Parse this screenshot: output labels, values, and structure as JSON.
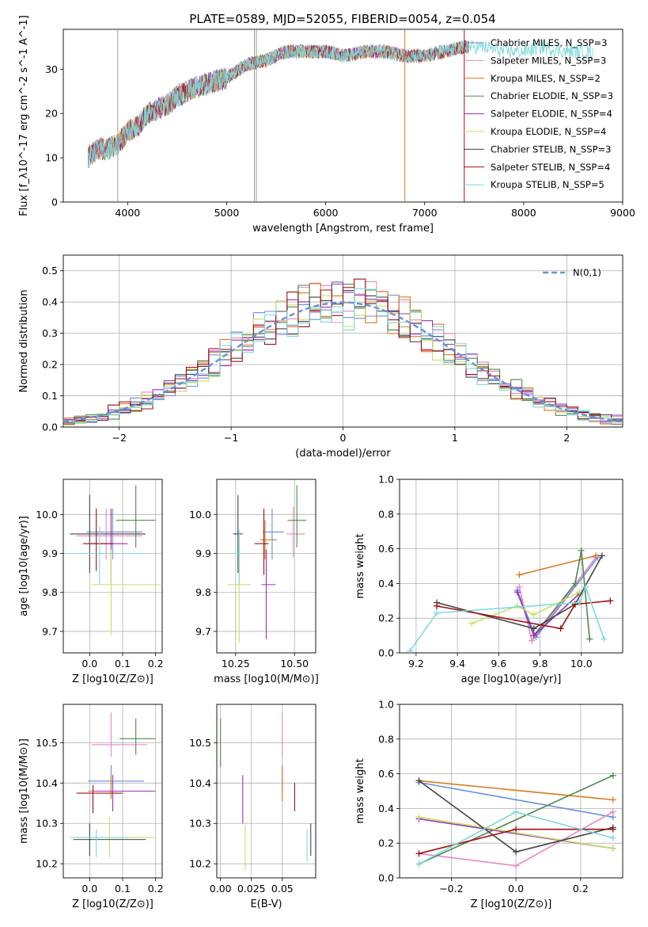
{
  "figure_title": "PLATE=0589, MJD=52055, FIBERID=0054, z=0.054",
  "series_names": [
    "Chabrier MILES, N_SSP=3",
    "Salpeter MILES, N_SSP=3",
    "Kroupa MILES, N_SSP=2",
    "Chabrier ELODIE, N_SSP=3",
    "Salpeter ELODIE, N_SSP=4",
    "Kroupa ELODIE, N_SSP=4",
    "Chabrier STELIB, N_SSP=3",
    "Salpeter STELIB, N_SSP=4",
    "Kroupa STELIB, N_SSP=5"
  ],
  "series_colors": [
    "#6a8fdd",
    "#e888c0",
    "#d97a20",
    "#4f8a4f",
    "#9a30b8",
    "#c8e060",
    "#454545",
    "#a01010",
    "#80d8dc"
  ],
  "chart_data": [
    {
      "type": "line",
      "panel": "spectrum",
      "xlabel": "wavelength [Angstrom, rest frame]",
      "ylabel": "Flux [f_λ10^-17 erg cm^-2 s^-1 A^-1]",
      "xlim": [
        3350,
        9000
      ],
      "ylim": [
        0,
        39
      ],
      "xticks": [
        4000,
        5000,
        6000,
        7000,
        8000,
        9000
      ],
      "yticks": [
        0,
        10,
        20,
        30
      ],
      "grid": false,
      "legend": "top-right",
      "spectrum_envelope": {
        "x": [
          3600,
          3700,
          3800,
          3900,
          4000,
          4100,
          4200,
          4300,
          4400,
          4500,
          4700,
          5000,
          5200,
          5400,
          5600,
          5800,
          6000,
          6200,
          6400,
          6600,
          6800,
          7000,
          7200,
          7400,
          7600,
          7800,
          8000,
          8200,
          8400,
          8700
        ],
        "y": [
          10,
          12,
          12,
          13,
          16,
          17,
          20,
          21,
          22,
          24,
          26,
          28,
          31,
          32,
          34,
          34,
          34,
          33,
          34,
          34,
          33,
          33,
          34,
          35,
          35,
          34,
          34,
          35,
          34,
          34
        ]
      },
      "spikes_x": [
        3900,
        5280,
        5300,
        6800,
        7400
      ]
    },
    {
      "type": "bar",
      "panel": "residual-histogram",
      "xlabel": "(data-model)/error",
      "ylabel": "Normed distribution",
      "xlim": [
        -2.5,
        2.5
      ],
      "ylim": [
        0,
        0.55
      ],
      "xticks": [
        -2,
        -1,
        0,
        1,
        2
      ],
      "yticks": [
        0.0,
        0.1,
        0.2,
        0.3,
        0.4,
        0.5
      ],
      "grid": true,
      "legend": "top-right",
      "reference_curve": "N(0,1)"
    },
    {
      "type": "scatter",
      "panel": "Z-vs-age",
      "xlabel": "Z [log10(Z/Z⊙)]",
      "ylabel": "age [log10(age/yr)]",
      "xlim": [
        -0.08,
        0.22
      ],
      "ylim": [
        9.645,
        10.09
      ],
      "xticks": [
        0.0,
        0.1,
        0.2
      ],
      "yticks": [
        9.7,
        9.8,
        9.9,
        10.0
      ],
      "grid": true,
      "points": [
        {
          "x": 0.07,
          "y": 9.955,
          "xerr": [
            0.08,
            0.09
          ],
          "yerr": [
            0.07,
            0.06
          ]
        },
        {
          "x": 0.05,
          "y": 9.945,
          "xerr": [
            0.09,
            0.11
          ],
          "yerr": [
            0.06,
            0.07
          ]
        },
        {
          "x": 0.065,
          "y": 9.95,
          "xerr": [
            0.08,
            0.09
          ],
          "yerr": [
            0.07,
            0.06
          ]
        },
        {
          "x": 0.14,
          "y": 9.985,
          "xerr": [
            0.06,
            0.06
          ],
          "yerr": [
            0.07,
            0.09
          ]
        },
        {
          "x": 0.065,
          "y": 9.925,
          "xerr": [
            0.06,
            0.05
          ],
          "yerr": [
            0.1,
            0.09
          ]
        },
        {
          "x": 0.065,
          "y": 9.82,
          "xerr": [
            0.06,
            0.16
          ],
          "yerr": [
            0.13,
            0.09
          ]
        },
        {
          "x": 0.0,
          "y": 9.95,
          "xerr": [
            0.06,
            0.17
          ],
          "yerr": [
            0.1,
            0.1
          ]
        },
        {
          "x": 0.02,
          "y": 9.925,
          "xerr": [
            0.04,
            0.05
          ],
          "yerr": [
            0.07,
            0.09
          ]
        },
        {
          "x": 0.03,
          "y": 9.9,
          "xerr": [
            0.1,
            0.14
          ],
          "yerr": [
            0.08,
            0.07
          ]
        }
      ]
    },
    {
      "type": "scatter",
      "panel": "mass-vs-age",
      "xlabel": "mass [log10(M/M⊙)]",
      "ylabel": "",
      "xlim": [
        10.17,
        10.59
      ],
      "ylim": [
        9.645,
        10.09
      ],
      "xticks": [
        10.25,
        10.5
      ],
      "yticks": [
        9.7,
        9.8,
        9.9,
        10.0
      ],
      "grid": true,
      "points": [
        {
          "x": 10.405,
          "y": 9.955,
          "xerr": [
            0.04,
            0.05
          ],
          "yerr": [
            0.07,
            0.06
          ]
        },
        {
          "x": 10.495,
          "y": 9.95,
          "xerr": [
            0.03,
            0.05
          ],
          "yerr": [
            0.06,
            0.07
          ]
        },
        {
          "x": 10.375,
          "y": 9.935,
          "xerr": [
            0.02,
            0.05
          ],
          "yerr": [
            0.05,
            0.05
          ]
        },
        {
          "x": 10.51,
          "y": 9.985,
          "xerr": [
            0.04,
            0.04
          ],
          "yerr": [
            0.07,
            0.09
          ]
        },
        {
          "x": 10.38,
          "y": 9.82,
          "xerr": [
            0.02,
            0.04
          ],
          "yerr": [
            0.14,
            0.09
          ]
        },
        {
          "x": 10.265,
          "y": 9.82,
          "xerr": [
            0.05,
            0.05
          ],
          "yerr": [
            0.15,
            0.11
          ]
        },
        {
          "x": 10.26,
          "y": 9.95,
          "xerr": [
            0.02,
            0.02
          ],
          "yerr": [
            0.1,
            0.1
          ]
        },
        {
          "x": 10.37,
          "y": 9.925,
          "xerr": [
            0.04,
            0.02
          ],
          "yerr": [
            0.08,
            0.09
          ]
        },
        {
          "x": 10.265,
          "y": 9.9,
          "xerr": [
            0.02,
            0.02
          ],
          "yerr": [
            0.08,
            0.06
          ]
        }
      ]
    },
    {
      "type": "line",
      "panel": "age-vs-massweight",
      "xlabel": "age [log10(age/yr)]",
      "ylabel": "mass weight",
      "xlim": [
        9.12,
        10.2
      ],
      "ylim": [
        0,
        1.0
      ],
      "xticks": [
        9.2,
        9.4,
        9.6,
        9.8,
        10.0
      ],
      "yticks": [
        0.0,
        0.2,
        0.4,
        0.6,
        0.8,
        1.0
      ],
      "grid": true,
      "series": [
        {
          "x": [
            9.69,
            9.78,
            10.08
          ],
          "y": [
            0.36,
            0.09,
            0.55
          ]
        },
        {
          "x": [
            9.7,
            9.76,
            10.07
          ],
          "y": [
            0.38,
            0.07,
            0.55
          ]
        },
        {
          "x": [
            9.7,
            10.07
          ],
          "y": [
            0.45,
            0.56
          ]
        },
        {
          "x": [
            9.77,
            9.97,
            10.0,
            10.04
          ],
          "y": [
            0.1,
            0.4,
            0.59,
            0.08
          ]
        },
        {
          "x": [
            9.69,
            9.77,
            9.99
          ],
          "y": [
            0.35,
            0.1,
            0.34
          ]
        },
        {
          "x": [
            9.47,
            9.69,
            9.77,
            9.99
          ],
          "y": [
            0.17,
            0.27,
            0.22,
            0.35
          ]
        },
        {
          "x": [
            9.3,
            9.77,
            9.97,
            10.1
          ],
          "y": [
            0.29,
            0.14,
            0.28,
            0.56
          ]
        },
        {
          "x": [
            9.3,
            9.9,
            9.97,
            10.14
          ],
          "y": [
            0.27,
            0.14,
            0.28,
            0.3
          ]
        },
        {
          "x": [
            9.17,
            9.3,
            9.99,
            10.02,
            10.11
          ],
          "y": [
            0.01,
            0.23,
            0.29,
            0.38,
            0.08
          ]
        }
      ]
    },
    {
      "type": "scatter",
      "panel": "Z-vs-mass",
      "xlabel": "Z [log10(Z/Z⊙)]",
      "ylabel": "mass [log10(M/M⊙)]",
      "xlim": [
        -0.08,
        0.22
      ],
      "ylim": [
        10.165,
        10.595
      ],
      "xticks": [
        0.0,
        0.1,
        0.2
      ],
      "yticks": [
        10.2,
        10.3,
        10.4,
        10.5
      ],
      "grid": true,
      "points": [
        {
          "x": 0.065,
          "y": 10.405,
          "xerr": [
            0.07,
            0.1
          ],
          "yerr": [
            0.04,
            0.04
          ]
        },
        {
          "x": 0.065,
          "y": 10.495,
          "xerr": [
            0.06,
            0.11
          ],
          "yerr": [
            0.03,
            0.08
          ]
        },
        {
          "x": 0.065,
          "y": 10.38,
          "xerr": [
            0.07,
            0.05
          ],
          "yerr": [
            0.02,
            0.04
          ]
        },
        {
          "x": 0.14,
          "y": 10.51,
          "xerr": [
            0.05,
            0.06
          ],
          "yerr": [
            0.04,
            0.05
          ]
        },
        {
          "x": 0.07,
          "y": 10.38,
          "xerr": [
            0.06,
            0.13
          ],
          "yerr": [
            0.05,
            0.04
          ]
        },
        {
          "x": 0.06,
          "y": 10.265,
          "xerr": [
            0.08,
            0.14
          ],
          "yerr": [
            0.05,
            0.05
          ]
        },
        {
          "x": 0.0,
          "y": 10.26,
          "xerr": [
            0.05,
            0.17
          ],
          "yerr": [
            0.04,
            0.04
          ]
        },
        {
          "x": 0.01,
          "y": 10.375,
          "xerr": [
            0.05,
            0.09
          ],
          "yerr": [
            0.05,
            0.02
          ]
        },
        {
          "x": 0.02,
          "y": 10.265,
          "xerr": [
            0.08,
            0.1
          ],
          "yerr": [
            0.05,
            0.02
          ]
        }
      ]
    },
    {
      "type": "scatter",
      "panel": "EBV-vs-mass",
      "xlabel": "E(B-V)",
      "ylabel": "",
      "xlim": [
        -0.003,
        0.077
      ],
      "ylim": [
        10.165,
        10.595
      ],
      "xticks": [
        0.0,
        0.025,
        0.05
      ],
      "yticks": [
        10.2,
        10.3,
        10.4,
        10.5
      ],
      "grid": true,
      "points": [
        {
          "x": 0.05,
          "y": 10.405,
          "yerr": [
            0.03,
            0.04
          ]
        },
        {
          "x": 0.05,
          "y": 10.495,
          "yerr": [
            0.03,
            0.08
          ]
        },
        {
          "x": 0.05,
          "y": 10.375,
          "yerr": [
            0.02,
            0.06
          ]
        },
        {
          "x": 0.0,
          "y": 10.51,
          "yerr": [
            0.07,
            0.05
          ]
        },
        {
          "x": 0.018,
          "y": 10.36,
          "yerr": [
            0.06,
            0.06
          ]
        },
        {
          "x": 0.02,
          "y": 10.245,
          "yerr": [
            0.06,
            0.05
          ]
        },
        {
          "x": 0.073,
          "y": 10.26,
          "yerr": [
            0.04,
            0.04
          ]
        },
        {
          "x": 0.06,
          "y": 10.37,
          "yerr": [
            0.04,
            0.03
          ]
        },
        {
          "x": 0.07,
          "y": 10.245,
          "yerr": [
            0.04,
            0.04
          ]
        }
      ]
    },
    {
      "type": "line",
      "panel": "Z-vs-massweight",
      "xlabel": "Z [log10(Z/Z⊙)]",
      "ylabel": "mass weight",
      "xlim": [
        -0.36,
        0.33
      ],
      "ylim": [
        0,
        1.0
      ],
      "xticks": [
        -0.2,
        0.0,
        0.2
      ],
      "yticks": [
        0.0,
        0.2,
        0.4,
        0.6,
        0.8,
        1.0
      ],
      "grid": true,
      "series": [
        {
          "x": [
            -0.3,
            0.3
          ],
          "y": [
            0.55,
            0.35
          ]
        },
        {
          "x": [
            -0.3,
            0.0,
            0.3
          ],
          "y": [
            0.14,
            0.07,
            0.38
          ]
        },
        {
          "x": [
            -0.3,
            0.3
          ],
          "y": [
            0.56,
            0.45
          ]
        },
        {
          "x": [
            -0.3,
            0.3
          ],
          "y": [
            0.08,
            0.59
          ]
        },
        {
          "x": [
            -0.3,
            0.3
          ],
          "y": [
            0.34,
            0.17
          ]
        },
        {
          "x": [
            -0.3,
            0.3
          ],
          "y": [
            0.35,
            0.17
          ]
        },
        {
          "x": [
            -0.3,
            0.0,
            0.3
          ],
          "y": [
            0.56,
            0.15,
            0.29
          ]
        },
        {
          "x": [
            -0.3,
            0.0,
            0.3
          ],
          "y": [
            0.14,
            0.28,
            0.28
          ]
        },
        {
          "x": [
            -0.3,
            0.0,
            0.3
          ],
          "y": [
            0.08,
            0.38,
            0.23
          ]
        }
      ]
    }
  ]
}
